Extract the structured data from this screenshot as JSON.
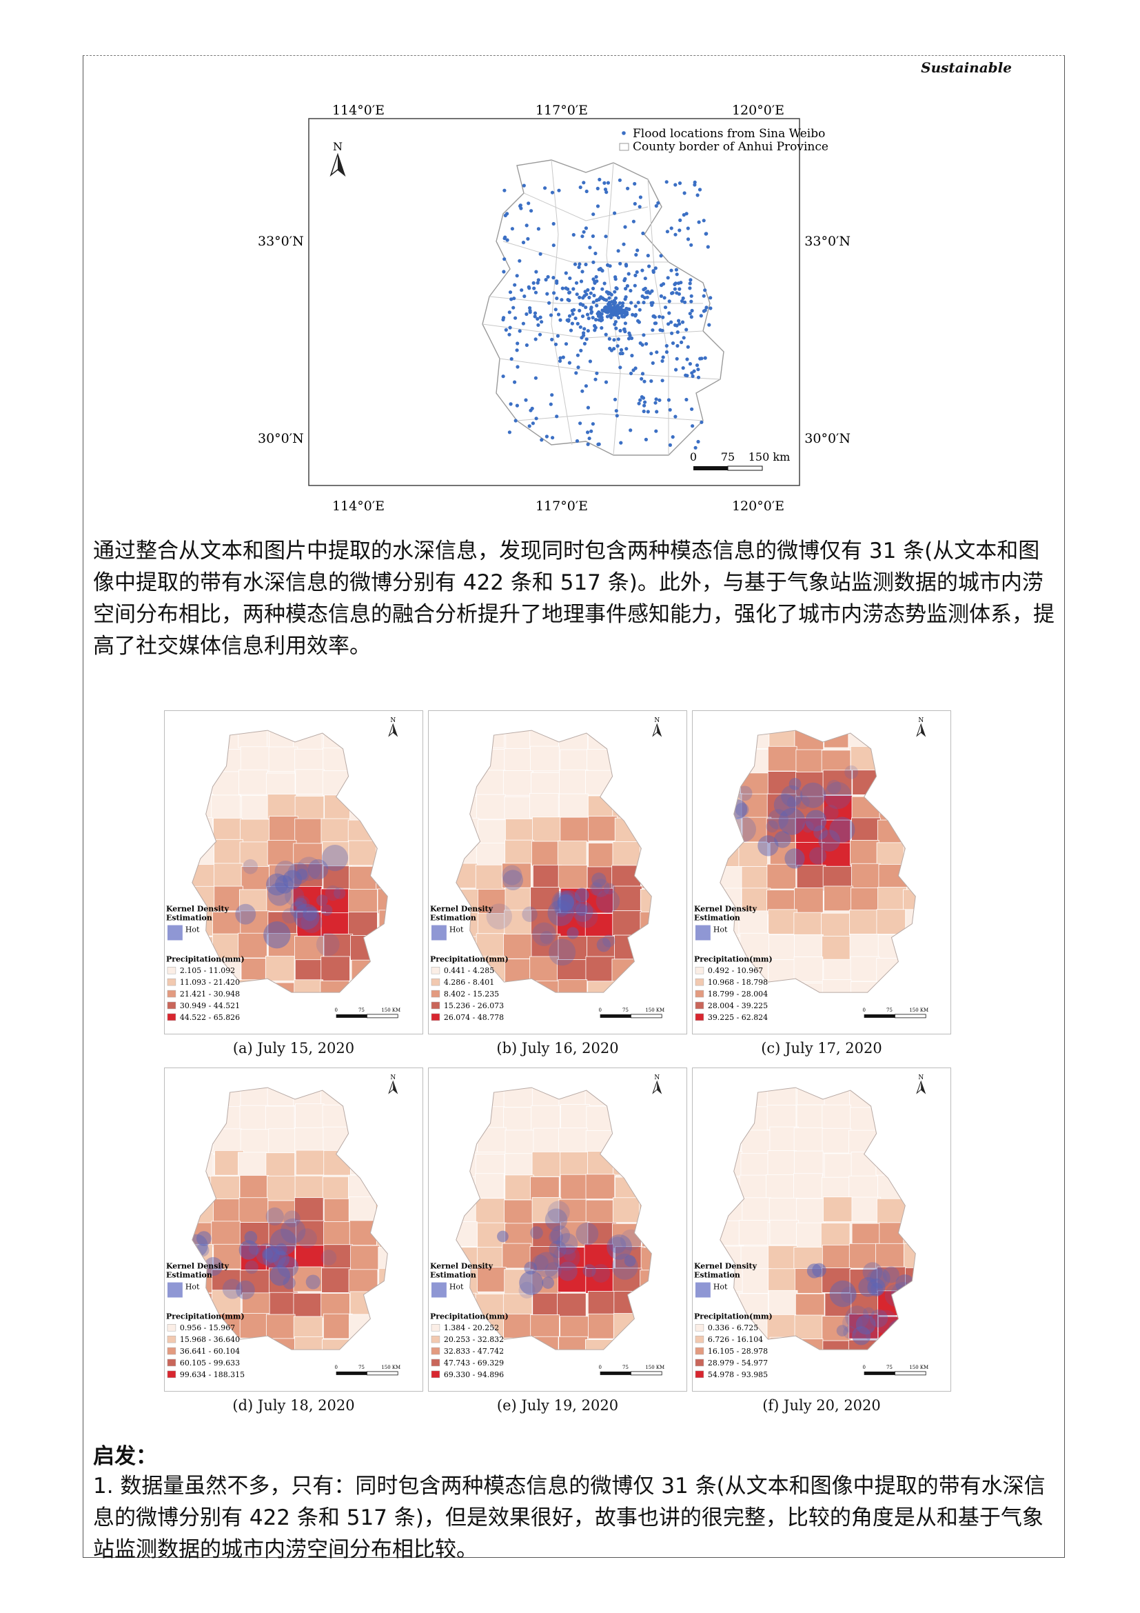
{
  "journal": "Sustainable",
  "map1": {
    "lon_labels": [
      "114°0′E",
      "117°0′E",
      "120°0′E"
    ],
    "lat_labels": [
      "33°0′N",
      "30°0′N"
    ],
    "north": "N",
    "legend": [
      "Flood locations from Sina Weibo",
      "County border of Anhui Province"
    ],
    "scale": [
      "0",
      "75",
      "150 km"
    ],
    "colors": {
      "points": "#3b6fc4",
      "border": "#9a9a9a"
    }
  },
  "paragraph1": "通过整合从文本和图片中提取的水深信息，发现同时包含两种模态信息的微博仅有 31 条(从文本和图像中提取的带有水深信息的微博分别有 422 条和 517 条)。此外，与基于气象站监测数据的城市内涝空间分布相比，两种模态信息的融合分析提升了地理事件感知能力，强化了城市内涝态势监测体系，提高了社交媒体信息利用效率。",
  "panels_common": {
    "kde_title": "Kernel Density Estimation",
    "hot": "Hot",
    "precip_title": "Precipitation(mm)",
    "north": "N",
    "scale": [
      "0",
      "75",
      "150 KM"
    ]
  },
  "panels": [
    {
      "caption": "(a) July 15, 2020",
      "ranges": [
        "2.105 - 11.092",
        "11.093 - 21.420",
        "21.421 - 30.948",
        "30.949 - 44.521",
        "44.522 - 65.826"
      ],
      "hot": "c"
    },
    {
      "caption": "(b) July 16, 2020",
      "ranges": [
        "0.441 - 4.285",
        "4.286 - 8.401",
        "8.402 - 15.235",
        "15.236 - 26.073",
        "26.074 - 48.778"
      ],
      "hot": "c"
    },
    {
      "caption": "(c) July 17, 2020",
      "ranges": [
        "0.492 - 10.967",
        "10.968 - 18.798",
        "18.799 - 28.004",
        "28.004 - 39.225",
        "39.225 - 62.824"
      ],
      "hot": "n"
    },
    {
      "caption": "(d) July 18, 2020",
      "ranges": [
        "0.956 - 15.967",
        "15.968 - 36.640",
        "36.641 - 60.104",
        "60.105 - 99.633",
        "99.634 - 188.315"
      ],
      "hot": "w"
    },
    {
      "caption": "(e) July 19, 2020",
      "ranges": [
        "1.384 - 20.252",
        "20.253 - 32.832",
        "32.833 - 47.742",
        "47.743 - 69.329",
        "69.330 - 94.896"
      ],
      "hot": "c"
    },
    {
      "caption": "(f) July 20, 2020",
      "ranges": [
        "0.336 - 6.725",
        "6.726 - 16.104",
        "16.105 - 28.978",
        "28.979 - 54.977",
        "54.978 - 93.985"
      ],
      "hot": "s"
    }
  ],
  "precip_colors": [
    "#fbeee6",
    "#f2c9b0",
    "#e39b80",
    "#c9665a",
    "#d8262f"
  ],
  "heading": "启发：",
  "paragraph2": "1. 数据量虽然不多，只有：同时包含两种模态信息的微博仅 31 条(从文本和图像中提取的带有水深信息的微博分别有 422 条和 517 条)，但是效果很好，故事也讲的很完整，比较的角度是从和基于气象站监测数据的城市内涝空间分布相比较。"
}
